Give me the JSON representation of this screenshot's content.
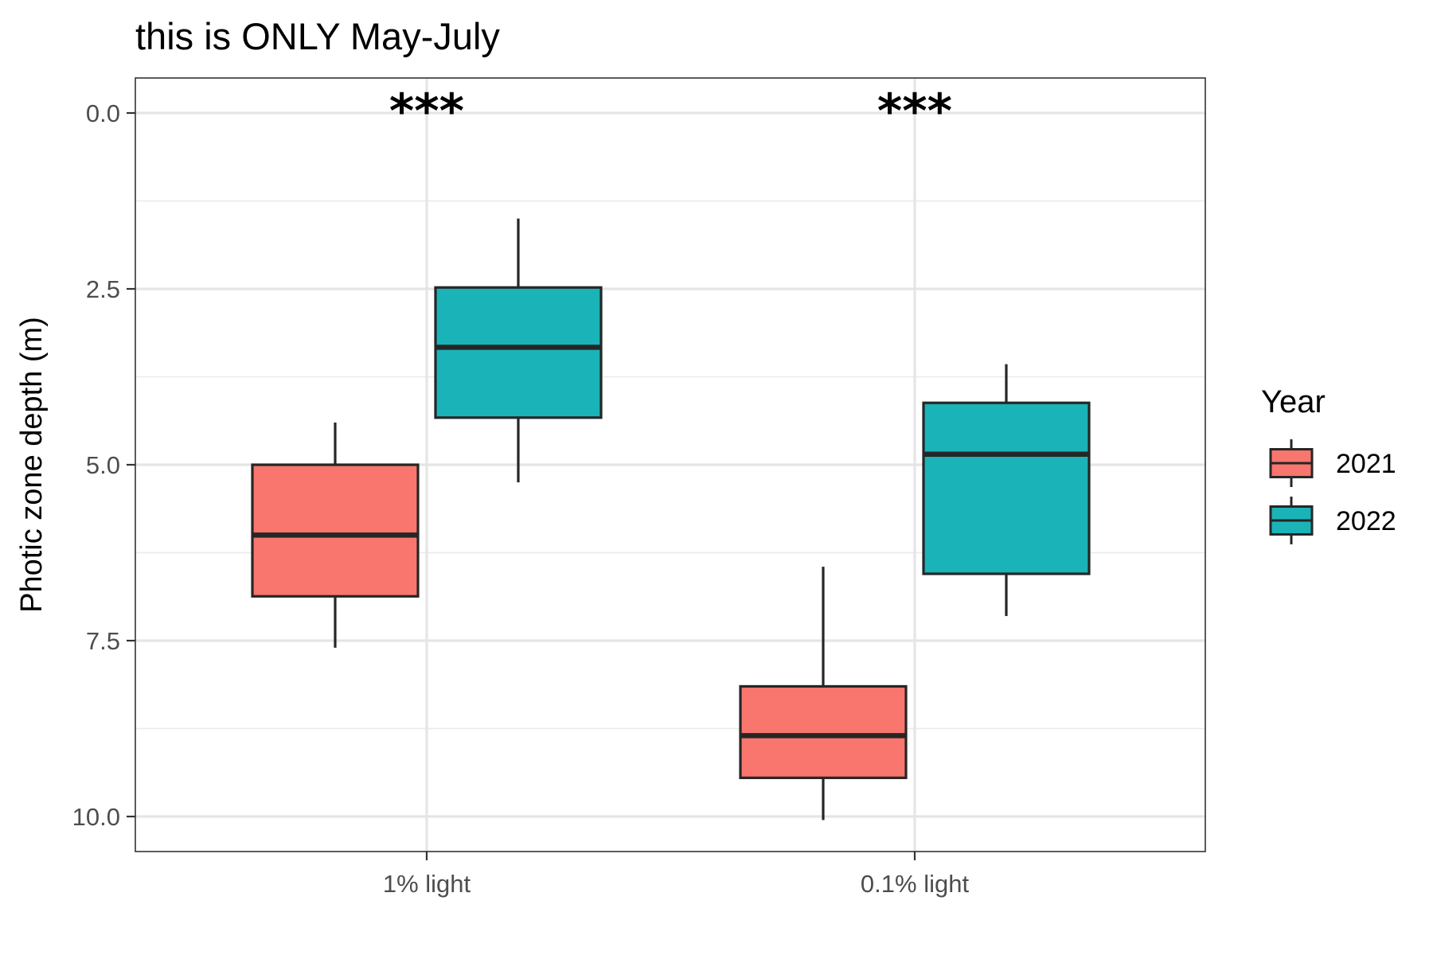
{
  "chart_data": {
    "type": "box",
    "title": "this is ONLY May-July",
    "xlabel": "",
    "ylabel": "Photic zone depth (m)",
    "y_reversed": true,
    "ylim": [
      0,
      10
    ],
    "yticks": [
      "0.0",
      "2.5",
      "5.0",
      "7.5",
      "10.0"
    ],
    "ytick_values": [
      0,
      2.5,
      5,
      7.5,
      10
    ],
    "categories": [
      "1% light",
      "0.1% light"
    ],
    "grid": true,
    "legend": {
      "title": "Year",
      "position": "right"
    },
    "series": [
      {
        "name": "2021",
        "color": "#F8766D",
        "boxes": [
          {
            "category": "1% light",
            "whisker_low": 4.4,
            "q1": 5.0,
            "median": 6.0,
            "q3": 6.87,
            "whisker_high": 7.6
          },
          {
            "category": "0.1% light",
            "whisker_low": 6.45,
            "q1": 8.15,
            "median": 8.85,
            "q3": 9.45,
            "whisker_high": 10.05
          }
        ]
      },
      {
        "name": "2022",
        "color": "#1AB3B8",
        "boxes": [
          {
            "category": "1% light",
            "whisker_low": 1.5,
            "q1": 2.48,
            "median": 3.33,
            "q3": 4.33,
            "whisker_high": 5.25
          },
          {
            "category": "0.1% light",
            "whisker_low": 3.57,
            "q1": 4.12,
            "median": 4.85,
            "q3": 6.55,
            "whisker_high": 7.15
          }
        ]
      }
    ],
    "annotations": [
      {
        "category": "1% light",
        "text": "***"
      },
      {
        "category": "0.1% light",
        "text": "***"
      }
    ]
  }
}
